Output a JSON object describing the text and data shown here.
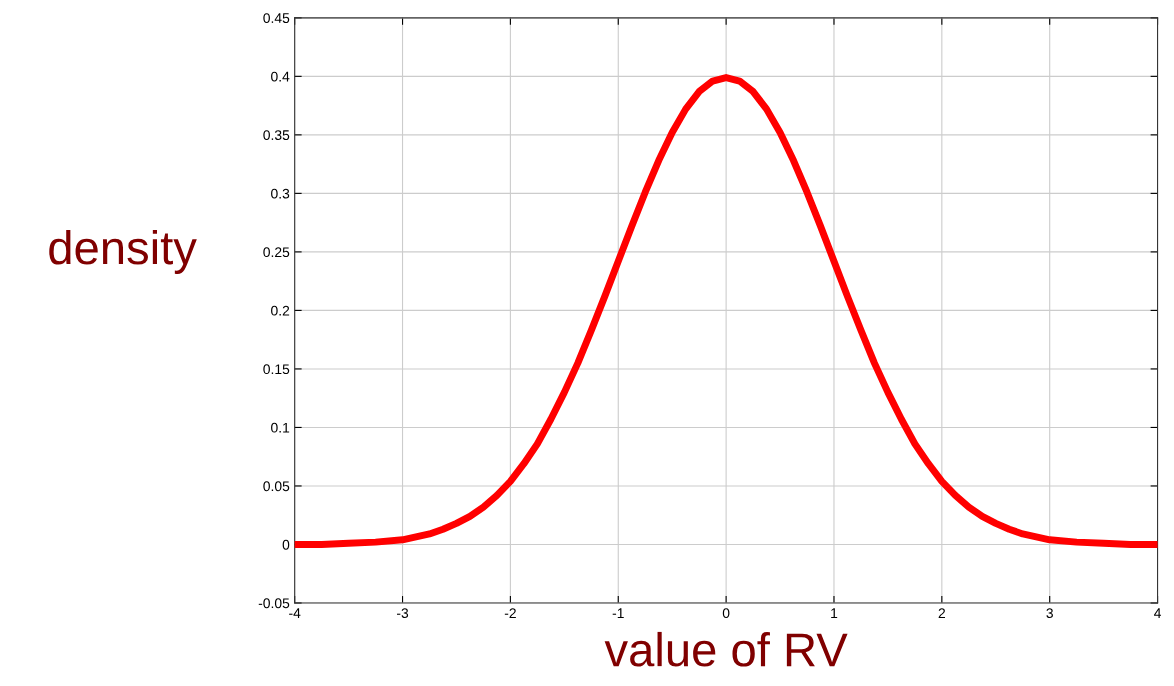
{
  "chart_data": {
    "type": "line",
    "xlabel": "value of RV",
    "ylabel": "density",
    "x": [
      -4,
      -3.75,
      -3.5,
      -3.25,
      -3,
      -2.75,
      -2.625,
      -2.5,
      -2.375,
      -2.25,
      -2.125,
      -2,
      -1.875,
      -1.75,
      -1.625,
      -1.5,
      -1.375,
      -1.25,
      -1.125,
      -1,
      -0.875,
      -0.75,
      -0.625,
      -0.5,
      -0.375,
      -0.25,
      -0.125,
      0,
      0.125,
      0.25,
      0.375,
      0.5,
      0.625,
      0.75,
      0.875,
      1,
      1.125,
      1.25,
      1.375,
      1.5,
      1.625,
      1.75,
      1.875,
      2,
      2.125,
      2.25,
      2.375,
      2.5,
      2.625,
      2.75,
      3,
      3.25,
      3.5,
      3.75,
      4
    ],
    "series": [
      {
        "color": "#ff0000",
        "values": [
          0.0,
          0.0,
          0.001,
          0.002,
          0.004,
          0.009,
          0.013,
          0.018,
          0.024,
          0.032,
          0.042,
          0.054,
          0.069,
          0.086,
          0.107,
          0.13,
          0.155,
          0.183,
          0.212,
          0.242,
          0.272,
          0.301,
          0.328,
          0.352,
          0.372,
          0.387,
          0.396,
          0.399,
          0.396,
          0.387,
          0.372,
          0.352,
          0.328,
          0.301,
          0.272,
          0.242,
          0.212,
          0.183,
          0.155,
          0.13,
          0.107,
          0.086,
          0.069,
          0.054,
          0.042,
          0.032,
          0.024,
          0.018,
          0.013,
          0.009,
          0.004,
          0.002,
          0.001,
          0.0,
          0.0
        ]
      }
    ],
    "xlim": [
      -4,
      4
    ],
    "xticks": [
      -4,
      -3,
      -2,
      -1,
      0,
      1,
      2,
      3,
      4
    ],
    "ylim": [
      -0.05,
      0.45
    ],
    "yticks": [
      -0.05,
      0,
      0.05,
      0.1,
      0.15,
      0.2,
      0.25,
      0.3,
      0.35,
      0.4,
      0.45
    ],
    "grid": true,
    "marker": "none",
    "line_style": "solid"
  }
}
